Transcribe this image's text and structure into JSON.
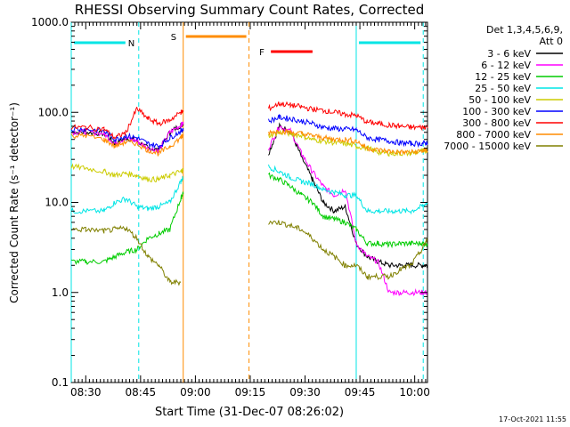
{
  "chart_data": {
    "type": "line",
    "title": "RHESSI Observing Summary Count Rates, Corrected",
    "xlabel": "Start Time (31-Dec-07 08:26:02)",
    "ylabel": "Corrected Count Rate (s⁻¹ detector⁻¹)",
    "y_scale": "log",
    "ylim": [
      0.1,
      1000.0
    ],
    "xlim": [
      "08:26:02",
      "10:03:30"
    ],
    "x_ticks": [
      "08:30",
      "08:45",
      "09:00",
      "09:15",
      "09:30",
      "09:45",
      "10:00"
    ],
    "y_ticks": [
      "0.1",
      "1.0",
      "10.0",
      "100.0",
      "1000.0"
    ],
    "grid": false,
    "legend_position": "top-right",
    "legend_header": [
      "Det 1,3,4,5,6,9,",
      "Att 0"
    ],
    "timestamp": "17-Oct-2021 11:55",
    "data_gaps": [
      [
        "08:56:40",
        "09:17:00"
      ]
    ],
    "flags": [
      {
        "label": "N",
        "color": "#00e5e5",
        "intervals": [
          [
            "08:26:02",
            "08:44:30"
          ],
          [
            "09:44:00",
            "10:02:20"
          ]
        ]
      },
      {
        "label": "S",
        "color": "#ff8c00",
        "intervals": [
          [
            "08:56:40",
            "09:14:40"
          ]
        ]
      },
      {
        "label": "F",
        "color": "#ff0000",
        "intervals": [
          [
            "09:17:00",
            "09:33:30"
          ]
        ]
      }
    ],
    "vertical_markers": [
      {
        "time": "08:26:02",
        "color": "#00e5e5",
        "style": "solid"
      },
      {
        "time": "08:44:30",
        "color": "#00e5e5",
        "style": "dashed"
      },
      {
        "time": "08:56:40",
        "color": "#ff8c00",
        "style": "solid"
      },
      {
        "time": "09:14:40",
        "color": "#ff8c00",
        "style": "dashed"
      },
      {
        "time": "09:44:00",
        "color": "#00e5e5",
        "style": "solid"
      },
      {
        "time": "10:02:20",
        "color": "#00e5e5",
        "style": "dashed"
      }
    ],
    "x": [
      "08:26:02",
      "08:30",
      "08:35",
      "08:38",
      "08:41",
      "08:44",
      "08:47",
      "08:50",
      "08:53",
      "08:56",
      "08:56:40",
      "09:17:00",
      "09:20",
      "09:23",
      "09:26",
      "09:29",
      "09:32",
      "09:35",
      "09:38",
      "09:41",
      "09:44",
      "09:47",
      "09:50",
      "09:53",
      "09:56",
      "09:59",
      "10:02",
      "10:03:30"
    ],
    "series": [
      {
        "name": "3 - 6 keV",
        "color": "#000000",
        "values": [
          60,
          60,
          58,
          45,
          52,
          48,
          40,
          38,
          60,
          72,
          75,
          null,
          35,
          70,
          62,
          32,
          18,
          10,
          8,
          9,
          3.5,
          2.5,
          2.2,
          2.0,
          2.0,
          2.0,
          2.0,
          2.0
        ]
      },
      {
        "name": "6 - 12 keV",
        "color": "#ff00ff",
        "values": [
          60,
          61,
          58,
          45,
          52,
          48,
          40,
          38,
          60,
          72,
          75,
          null,
          40,
          70,
          62,
          35,
          22,
          15,
          12,
          14,
          3.5,
          2.5,
          2.2,
          1.0,
          1.0,
          1.0,
          1.0,
          1.0
        ]
      },
      {
        "name": "12 - 25 keV",
        "color": "#00cc00",
        "values": [
          2.2,
          2.2,
          2.2,
          2.5,
          2.8,
          3.0,
          4.0,
          4.5,
          5.0,
          11,
          13,
          null,
          20,
          18,
          15,
          12,
          10,
          7,
          6.5,
          6,
          5,
          3.5,
          3.5,
          3.4,
          3.5,
          3.5,
          3.5,
          3.5
        ]
      },
      {
        "name": "25 - 50 keV",
        "color": "#00e5e5",
        "values": [
          8,
          8,
          8,
          10,
          11,
          9,
          8.5,
          9,
          10,
          17,
          19,
          null,
          25,
          22,
          19,
          17,
          16,
          14,
          13,
          12,
          12,
          8,
          8,
          8,
          8,
          8,
          9,
          10
        ]
      },
      {
        "name": "50 - 100 keV",
        "color": "#cccc00",
        "values": [
          25,
          24,
          22,
          20,
          21,
          20,
          18,
          18,
          20,
          22,
          23,
          null,
          55,
          60,
          58,
          55,
          50,
          48,
          46,
          45,
          42,
          40,
          36,
          35,
          35,
          35,
          37,
          38
        ]
      },
      {
        "name": "100 - 300 keV",
        "color": "#0000ff",
        "values": [
          65,
          65,
          62,
          50,
          55,
          52,
          45,
          42,
          52,
          62,
          65,
          null,
          80,
          88,
          85,
          80,
          75,
          68,
          66,
          65,
          64,
          52,
          50,
          48,
          46,
          45,
          45,
          46
        ]
      },
      {
        "name": "300 - 800 keV",
        "color": "#ff0000",
        "values": [
          68,
          68,
          65,
          52,
          60,
          110,
          85,
          75,
          82,
          100,
          102,
          null,
          110,
          125,
          120,
          115,
          108,
          105,
          100,
          95,
          92,
          78,
          75,
          72,
          70,
          68,
          68,
          70
        ]
      },
      {
        "name": "800 - 7000 keV",
        "color": "#ff8c00",
        "values": [
          55,
          55,
          50,
          42,
          47,
          45,
          38,
          35,
          42,
          52,
          55,
          null,
          60,
          62,
          60,
          58,
          55,
          52,
          50,
          50,
          48,
          40,
          38,
          37,
          36,
          36,
          37,
          38
        ]
      },
      {
        "name": "7000 - 15000 keV",
        "color": "#808000",
        "values": [
          5,
          5,
          4.8,
          5,
          5.2,
          4,
          2.5,
          2,
          1.3,
          1.3,
          null,
          null,
          6,
          6,
          5.5,
          5,
          4,
          3,
          2.5,
          2,
          2,
          1.5,
          1.5,
          1.5,
          1.8,
          2,
          3,
          4
        ]
      }
    ]
  }
}
